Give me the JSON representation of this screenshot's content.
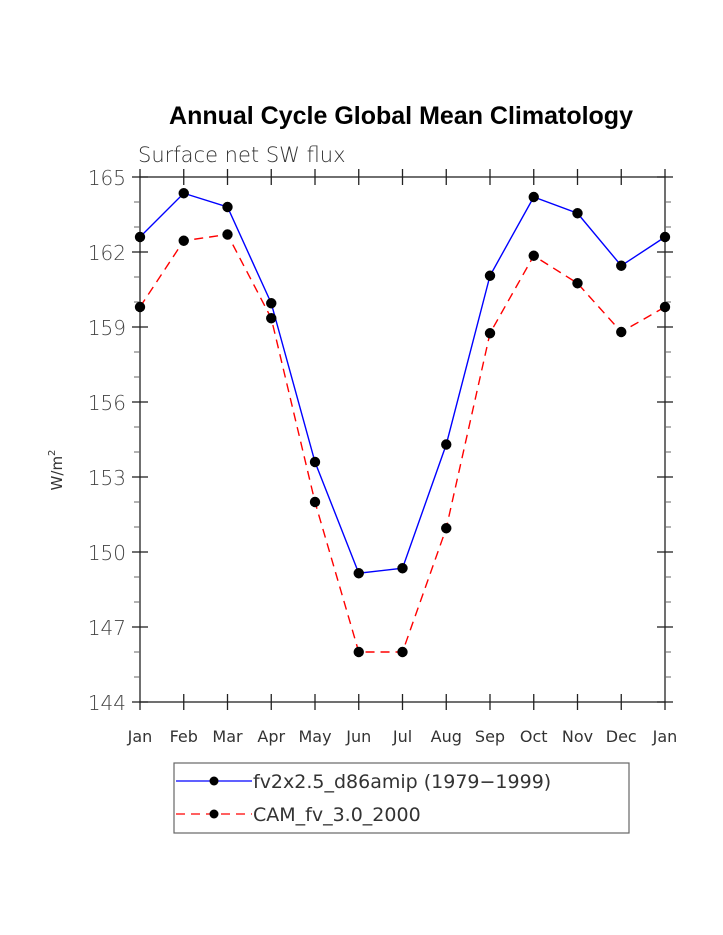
{
  "chart_data": {
    "type": "line",
    "title": "Annual Cycle Global Mean Climatology",
    "subtitle": "Surface net SW flux",
    "xlabel": "",
    "ylabel": "W/m",
    "ylabel_superscript": "2",
    "ylim": [
      144,
      165
    ],
    "yticks": [
      144,
      147,
      150,
      153,
      156,
      159,
      162,
      165
    ],
    "ytick_labels": [
      "144",
      "147",
      "150",
      "153",
      "156",
      "159",
      "162",
      "165"
    ],
    "y_minor_step": 1,
    "categories": [
      "Jan",
      "Feb",
      "Mar",
      "Apr",
      "May",
      "Jun",
      "Jul",
      "Aug",
      "Sep",
      "Oct",
      "Nov",
      "Dec",
      "Jan"
    ],
    "grid": false,
    "legend_position": "bottom",
    "series": [
      {
        "name": "fv2x2.5_d86amip (1979−1999)",
        "color": "#0000ff",
        "line_style": "solid",
        "marker": "filled-circle",
        "marker_color": "#000000",
        "values": [
          162.6,
          164.35,
          163.8,
          159.95,
          153.6,
          149.15,
          149.35,
          154.3,
          161.05,
          164.2,
          163.55,
          161.45,
          162.6
        ]
      },
      {
        "name": "CAM_fv_3.0_2000",
        "color": "#ff0000",
        "line_style": "dashed",
        "marker": "filled-circle",
        "marker_color": "#000000",
        "values": [
          159.8,
          162.45,
          162.7,
          159.35,
          152.0,
          146.0,
          146.0,
          150.95,
          158.75,
          161.85,
          160.75,
          158.8,
          159.8
        ]
      }
    ]
  }
}
